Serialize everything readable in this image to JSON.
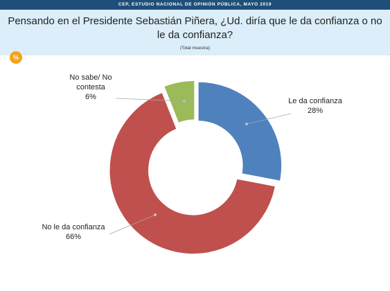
{
  "header": {
    "source": "CEP, ESTUDIO NACIONAL DE OPINIÓN PÚBLICA, MAYO 2019",
    "title": "Pensando en el Presidente Sebastián Piñera, ¿Ud. diría que le da confianza o no le da confianza?",
    "subtitle": "(Total muestra)",
    "badge": "%"
  },
  "chart_data": {
    "type": "pie",
    "donut": true,
    "categories": [
      "Le da confianza",
      "No le da confianza",
      "No sabe/ No contesta"
    ],
    "values": [
      28,
      66,
      6
    ],
    "colors": [
      "#4f81bd",
      "#c0504d",
      "#9bbb59"
    ],
    "labels": [
      {
        "lines": [
          "Le da confianza",
          "28%"
        ]
      },
      {
        "lines": [
          "No le da confianza",
          "66%"
        ]
      },
      {
        "lines": [
          "No sabe/ No",
          "contesta",
          "6%"
        ]
      }
    ]
  }
}
